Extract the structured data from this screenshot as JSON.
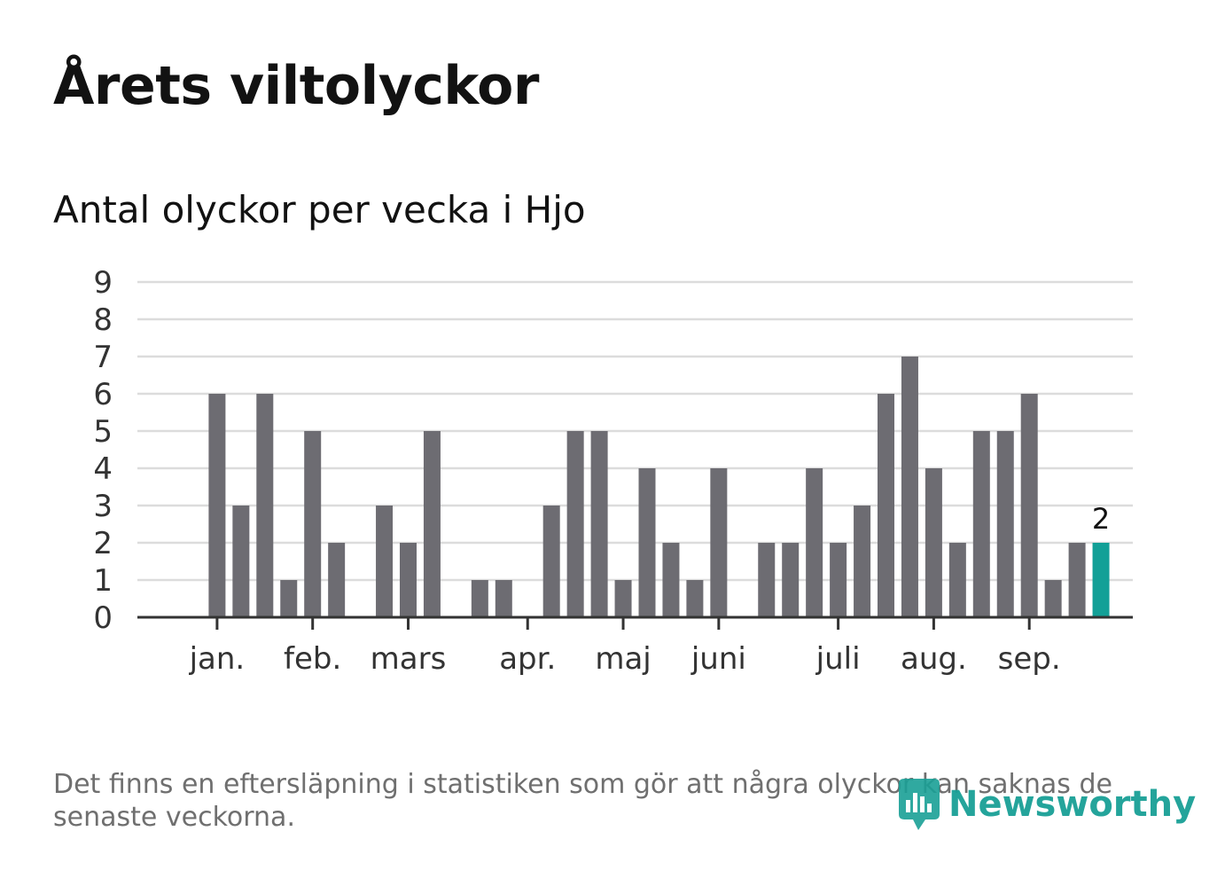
{
  "header": {
    "title": "Årets viltolyckor",
    "subtitle": "Antal olyckor per vecka i Hjo"
  },
  "footer": {
    "note": "Det finns en eftersläpning i statistiken som gör att några olyckor kan saknas de senaste veckorna.",
    "brand": "Newsworthy"
  },
  "colors": {
    "bar": "#6d6c72",
    "highlight": "#13a097",
    "grid": "#dcdcdc",
    "axis": "#333333",
    "text": "#333333",
    "brand": "#19a096"
  },
  "chart_data": {
    "type": "bar",
    "title": "Årets viltolyckor",
    "subtitle": "Antal olyckor per vecka i Hjo",
    "xlabel": "",
    "ylabel": "",
    "ylim": [
      0,
      9
    ],
    "yticks": [
      0,
      1,
      2,
      3,
      4,
      5,
      6,
      7,
      8,
      9
    ],
    "grid": true,
    "weeks": [
      1,
      2,
      3,
      4,
      5,
      6,
      7,
      8,
      9,
      10,
      11,
      12,
      13,
      14,
      15,
      16,
      17,
      18,
      19,
      20,
      21,
      22,
      23,
      24,
      25,
      26,
      27,
      28,
      29,
      30,
      31,
      32,
      33,
      34,
      35,
      36,
      37,
      38,
      39,
      40,
      41,
      42
    ],
    "values": [
      0,
      0,
      6,
      3,
      6,
      1,
      5,
      2,
      0,
      3,
      2,
      5,
      0,
      1,
      1,
      0,
      3,
      5,
      5,
      1,
      4,
      2,
      1,
      4,
      0,
      2,
      2,
      4,
      2,
      3,
      6,
      7,
      4,
      2,
      5,
      5,
      6,
      1,
      2,
      2,
      0,
      0
    ],
    "highlight_index": 39,
    "highlight_label": "2",
    "month_labels": [
      {
        "label": "jan.",
        "week": 3
      },
      {
        "label": "feb.",
        "week": 7
      },
      {
        "label": "mars",
        "week": 11
      },
      {
        "label": "apr.",
        "week": 16
      },
      {
        "label": "maj",
        "week": 20
      },
      {
        "label": "juni",
        "week": 24
      },
      {
        "label": "juli",
        "week": 29
      },
      {
        "label": "aug.",
        "week": 33
      },
      {
        "label": "sep.",
        "week": 37
      }
    ]
  }
}
